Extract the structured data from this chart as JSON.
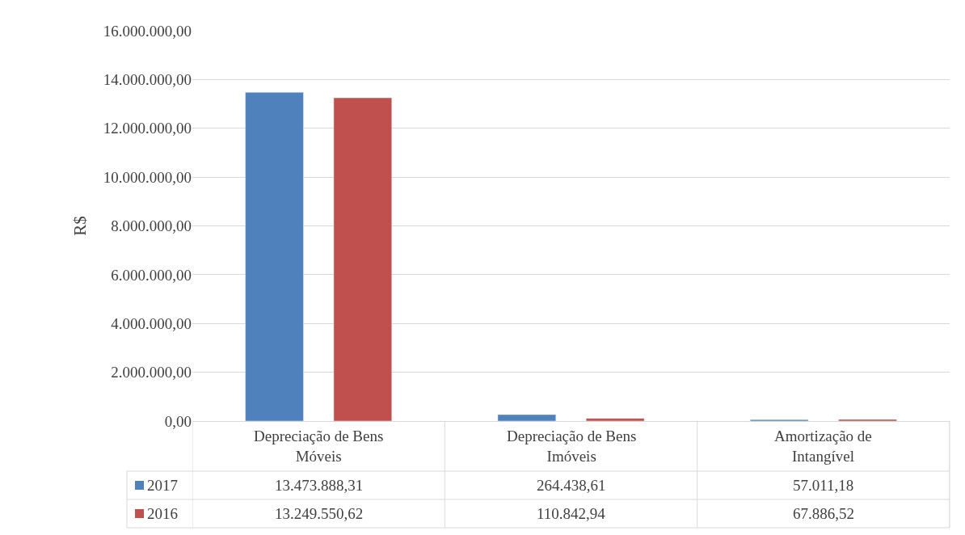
{
  "chart_data": {
    "type": "bar",
    "ylabel": "R$",
    "categories": [
      "Depreciação de Bens Móveis",
      "Depreciação de Bens Imóveis",
      "Amortização de Intangível"
    ],
    "series": [
      {
        "name": "2017",
        "color": "#4f81bd",
        "values": [
          13473888.31,
          264438.61,
          57011.18
        ],
        "value_labels": [
          "13.473.888,31",
          "264.438,61",
          "57.011,18"
        ]
      },
      {
        "name": "2016",
        "color": "#c0504d",
        "values": [
          13249550.62,
          110842.94,
          67886.52
        ],
        "value_labels": [
          "13.249.550,62",
          "110.842,94",
          "67.886,52"
        ]
      }
    ],
    "ylim": [
      0,
      16000000
    ],
    "yticks": [
      {
        "value": 0,
        "label": "0,00"
      },
      {
        "value": 2000000,
        "label": "2.000.000,00"
      },
      {
        "value": 4000000,
        "label": "4.000.000,00"
      },
      {
        "value": 6000000,
        "label": "6.000.000,00"
      },
      {
        "value": 8000000,
        "label": "8.000.000,00"
      },
      {
        "value": 10000000,
        "label": "10.000.000,00"
      },
      {
        "value": 12000000,
        "label": "12.000.000,00"
      },
      {
        "value": 14000000,
        "label": "14.000.000,00"
      },
      {
        "value": 16000000,
        "label": "16.000.000,00"
      }
    ],
    "grid": "y",
    "legend": "bottom left"
  }
}
